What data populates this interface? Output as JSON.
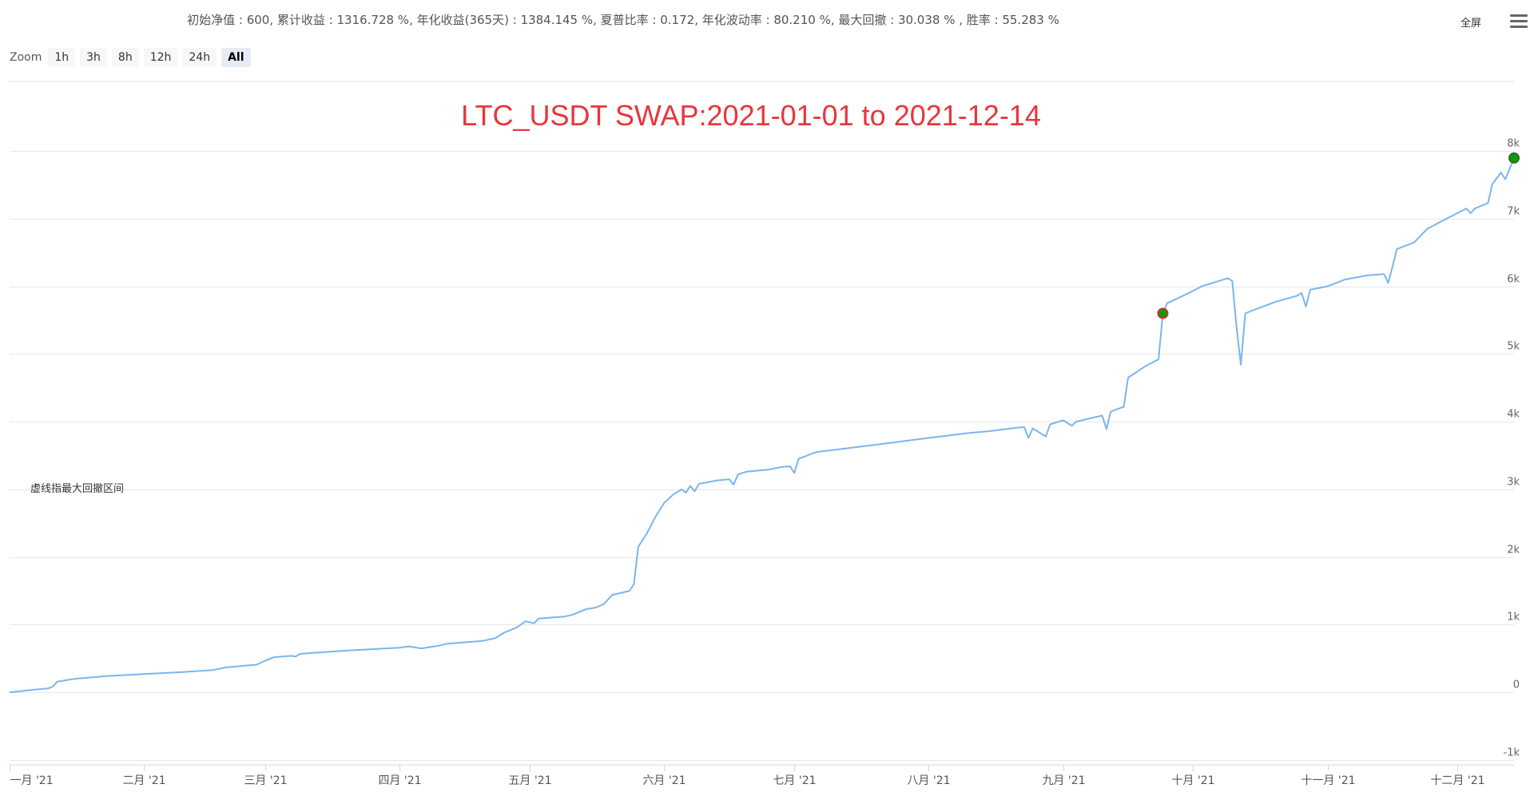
{
  "stats_line": "初始净值 : 600, 累计收益 : 1316.728 %, 年化收益(365天) : 1384.145 %, 夏普比率 : 0.172, 年化波动率 : 80.210 %, 最大回撤 : 30.038 % , 胜率 : 55.283 %",
  "toolbar": {
    "fullscreen_label": "全屏",
    "menu_icon": "hamburger-menu-icon"
  },
  "zoom": {
    "label": "Zoom",
    "buttons": [
      "1h",
      "3h",
      "8h",
      "12h",
      "24h",
      "All"
    ],
    "active": "All"
  },
  "note": "虚线指最大回撤区间",
  "colors": {
    "line": "#7cb5ec",
    "marker_fill": "#0b9d0b",
    "drawdown_marker_stroke": "#d32f2f",
    "title": "#e8363b",
    "grid": "#e6e6e6"
  },
  "chart_data": {
    "type": "line",
    "title": "LTC_USDT SWAP:2021-01-01 to 2021-12-14",
    "xlabel": "",
    "ylabel": "",
    "ylim": [
      -1000,
      8000
    ],
    "y_ticks": [
      -1000,
      0,
      1000,
      2000,
      3000,
      4000,
      5000,
      6000,
      7000,
      8000
    ],
    "y_tick_labels": [
      "-1k",
      "0",
      "1k",
      "2k",
      "3k",
      "4k",
      "5k",
      "6k",
      "7k",
      "8k"
    ],
    "x_ticks": [
      "2021-01-01",
      "2021-02-01",
      "2021-03-01",
      "2021-04-01",
      "2021-05-01",
      "2021-06-01",
      "2021-07-01",
      "2021-08-01",
      "2021-09-01",
      "2021-10-01",
      "2021-11-01",
      "2021-12-01"
    ],
    "x_tick_labels": [
      "一月 '21",
      "二月 '21",
      "三月 '21",
      "四月 '21",
      "五月 '21",
      "六月 '21",
      "七月 '21",
      "八月 '21",
      "九月 '21",
      "十月 '21",
      "十一月 '21",
      "十二月 '21"
    ],
    "xlim": [
      "2021-01-01",
      "2021-12-14"
    ],
    "grid": true,
    "series": [
      {
        "points": [
          [
            "2021-01-01",
            0
          ],
          [
            "2021-01-05",
            30
          ],
          [
            "2021-01-10",
            60
          ],
          [
            "2021-01-11",
            90
          ],
          [
            "2021-01-12",
            160
          ],
          [
            "2021-01-16",
            200
          ],
          [
            "2021-01-23",
            240
          ],
          [
            "2021-02-01",
            270
          ],
          [
            "2021-02-10",
            300
          ],
          [
            "2021-02-17",
            330
          ],
          [
            "2021-02-20",
            370
          ],
          [
            "2021-02-27",
            410
          ],
          [
            "2021-03-01",
            470
          ],
          [
            "2021-03-03",
            520
          ],
          [
            "2021-03-07",
            540
          ],
          [
            "2021-03-08",
            530
          ],
          [
            "2021-03-09",
            570
          ],
          [
            "2021-03-20",
            620
          ],
          [
            "2021-04-01",
            660
          ],
          [
            "2021-04-03",
            680
          ],
          [
            "2021-04-06",
            650
          ],
          [
            "2021-04-10",
            690
          ],
          [
            "2021-04-12",
            720
          ],
          [
            "2021-04-20",
            760
          ],
          [
            "2021-04-23",
            800
          ],
          [
            "2021-04-25",
            880
          ],
          [
            "2021-04-28",
            960
          ],
          [
            "2021-04-30",
            1050
          ],
          [
            "2021-05-02",
            1020
          ],
          [
            "2021-05-03",
            1090
          ],
          [
            "2021-05-09",
            1120
          ],
          [
            "2021-05-11",
            1150
          ],
          [
            "2021-05-14",
            1230
          ],
          [
            "2021-05-16",
            1250
          ],
          [
            "2021-05-18",
            1300
          ],
          [
            "2021-05-20",
            1440
          ],
          [
            "2021-05-24",
            1500
          ],
          [
            "2021-05-25",
            1600
          ],
          [
            "2021-05-26",
            2150
          ],
          [
            "2021-05-28",
            2350
          ],
          [
            "2021-05-30",
            2600
          ],
          [
            "2021-06-01",
            2800
          ],
          [
            "2021-06-03",
            2920
          ],
          [
            "2021-06-05",
            3000
          ],
          [
            "2021-06-06",
            2950
          ],
          [
            "2021-06-07",
            3050
          ],
          [
            "2021-06-08",
            2970
          ],
          [
            "2021-06-09",
            3080
          ],
          [
            "2021-06-13",
            3130
          ],
          [
            "2021-06-16",
            3150
          ],
          [
            "2021-06-17",
            3070
          ],
          [
            "2021-06-18",
            3220
          ],
          [
            "2021-06-20",
            3260
          ],
          [
            "2021-06-25",
            3290
          ],
          [
            "2021-06-28",
            3330
          ],
          [
            "2021-06-30",
            3340
          ],
          [
            "2021-07-01",
            3240
          ],
          [
            "2021-07-02",
            3450
          ],
          [
            "2021-07-06",
            3550
          ],
          [
            "2021-07-15",
            3620
          ],
          [
            "2021-07-20",
            3660
          ],
          [
            "2021-08-01",
            3760
          ],
          [
            "2021-08-05",
            3790
          ],
          [
            "2021-08-10",
            3830
          ],
          [
            "2021-08-15",
            3860
          ],
          [
            "2021-08-20",
            3900
          ],
          [
            "2021-08-23",
            3920
          ],
          [
            "2021-08-24",
            3760
          ],
          [
            "2021-08-25",
            3900
          ],
          [
            "2021-08-28",
            3780
          ],
          [
            "2021-08-29",
            3960
          ],
          [
            "2021-09-01",
            4020
          ],
          [
            "2021-09-03",
            3940
          ],
          [
            "2021-09-04",
            4000
          ],
          [
            "2021-09-08",
            4060
          ],
          [
            "2021-09-10",
            4090
          ],
          [
            "2021-09-11",
            3890
          ],
          [
            "2021-09-12",
            4150
          ],
          [
            "2021-09-15",
            4220
          ],
          [
            "2021-09-16",
            4650
          ],
          [
            "2021-09-20",
            4820
          ],
          [
            "2021-09-23",
            4920
          ],
          [
            "2021-09-24",
            5600
          ],
          [
            "2021-09-25",
            5750
          ],
          [
            "2021-09-30",
            5900
          ],
          [
            "2021-10-03",
            6000
          ],
          [
            "2021-10-06",
            6060
          ],
          [
            "2021-10-09",
            6120
          ],
          [
            "2021-10-10",
            6080
          ],
          [
            "2021-10-11",
            5400
          ],
          [
            "2021-10-12",
            4840
          ],
          [
            "2021-10-13",
            5600
          ],
          [
            "2021-10-15",
            5650
          ],
          [
            "2021-10-20",
            5770
          ],
          [
            "2021-10-25",
            5860
          ],
          [
            "2021-10-26",
            5900
          ],
          [
            "2021-10-27",
            5700
          ],
          [
            "2021-10-28",
            5950
          ],
          [
            "2021-11-01",
            6000
          ],
          [
            "2021-11-05",
            6100
          ],
          [
            "2021-11-10",
            6160
          ],
          [
            "2021-11-14",
            6180
          ],
          [
            "2021-11-15",
            6050
          ],
          [
            "2021-11-16",
            6300
          ],
          [
            "2021-11-17",
            6550
          ],
          [
            "2021-11-21",
            6650
          ],
          [
            "2021-11-24",
            6850
          ],
          [
            "2021-11-27",
            6950
          ],
          [
            "2021-11-30",
            7050
          ],
          [
            "2021-12-03",
            7150
          ],
          [
            "2021-12-04",
            7080
          ],
          [
            "2021-12-05",
            7150
          ],
          [
            "2021-12-08",
            7230
          ],
          [
            "2021-12-09",
            7510
          ],
          [
            "2021-12-11",
            7680
          ],
          [
            "2021-12-12",
            7580
          ],
          [
            "2021-12-14",
            7895
          ]
        ]
      }
    ],
    "markers": [
      {
        "x": "2021-09-24",
        "y": 5600,
        "kind": "drawdown-start"
      },
      {
        "x": "2021-12-14",
        "y": 7895,
        "kind": "last-point"
      }
    ]
  }
}
